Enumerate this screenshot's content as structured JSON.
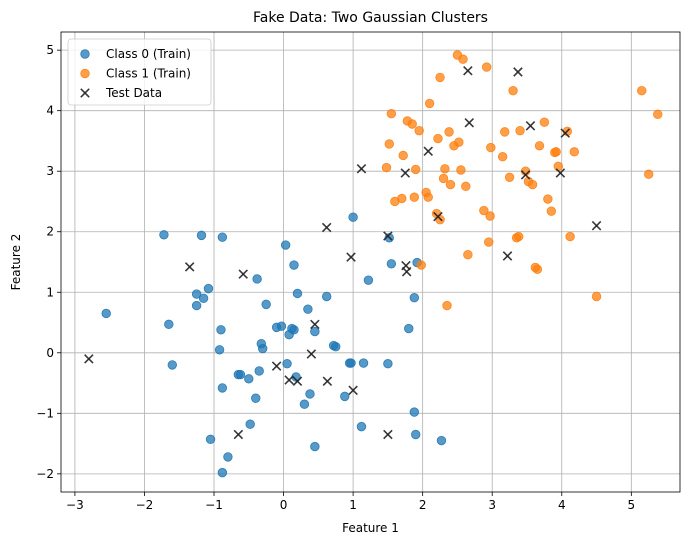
{
  "chart_data": {
    "type": "scatter",
    "title": "Fake Data: Two Gaussian Clusters",
    "xlabel": "Feature 1",
    "ylabel": "Feature 2",
    "xlim": [
      -3.2,
      5.7
    ],
    "ylim": [
      -2.3,
      5.3
    ],
    "xticks": [
      -3,
      -2,
      -1,
      0,
      1,
      2,
      3,
      4,
      5
    ],
    "yticks": [
      -2,
      -1,
      0,
      1,
      2,
      3,
      4,
      5
    ],
    "grid": true,
    "legend_position": "top-left",
    "series": [
      {
        "name": "Class 0 (Train)",
        "color": "#1f77b4",
        "marker": "circle",
        "points": [
          [
            -2.55,
            0.65
          ],
          [
            -1.72,
            1.95
          ],
          [
            -1.65,
            0.47
          ],
          [
            -1.6,
            -0.2
          ],
          [
            -1.25,
            0.97
          ],
          [
            -1.25,
            0.78
          ],
          [
            -1.18,
            1.94
          ],
          [
            -1.15,
            0.9
          ],
          [
            -1.08,
            1.06
          ],
          [
            -1.05,
            -1.43
          ],
          [
            -0.92,
            0.05
          ],
          [
            -0.9,
            0.38
          ],
          [
            -0.88,
            -0.58
          ],
          [
            -0.88,
            1.91
          ],
          [
            -0.88,
            -1.98
          ],
          [
            -0.8,
            -1.72
          ],
          [
            -0.65,
            -0.36
          ],
          [
            -0.62,
            -0.36
          ],
          [
            -0.5,
            -0.43
          ],
          [
            -0.48,
            -1.18
          ],
          [
            -0.4,
            -0.75
          ],
          [
            -0.38,
            1.22
          ],
          [
            -0.35,
            -0.3
          ],
          [
            -0.3,
            0.07
          ],
          [
            -0.32,
            0.15
          ],
          [
            -0.25,
            0.8
          ],
          [
            -0.1,
            0.42
          ],
          [
            -0.03,
            0.44
          ],
          [
            0.03,
            1.78
          ],
          [
            0.05,
            -0.18
          ],
          [
            0.08,
            0.3
          ],
          [
            0.12,
            0.4
          ],
          [
            0.15,
            0.38
          ],
          [
            0.15,
            1.45
          ],
          [
            0.18,
            -0.4
          ],
          [
            0.2,
            0.98
          ],
          [
            0.3,
            -0.85
          ],
          [
            0.35,
            0.72
          ],
          [
            0.38,
            -0.68
          ],
          [
            0.45,
            0.35
          ],
          [
            0.45,
            -1.55
          ],
          [
            0.62,
            0.93
          ],
          [
            0.72,
            0.12
          ],
          [
            0.75,
            0.1
          ],
          [
            0.88,
            -0.72
          ],
          [
            0.95,
            -0.17
          ],
          [
            0.97,
            -0.17
          ],
          [
            1.0,
            2.24
          ],
          [
            1.12,
            -1.22
          ],
          [
            1.15,
            -0.17
          ],
          [
            1.22,
            1.2
          ],
          [
            1.5,
            -0.18
          ],
          [
            1.52,
            1.9
          ],
          [
            1.55,
            1.47
          ],
          [
            1.8,
            0.4
          ],
          [
            1.88,
            0.91
          ],
          [
            1.88,
            -0.98
          ],
          [
            1.9,
            -1.35
          ],
          [
            1.92,
            1.49
          ],
          [
            2.27,
            -1.45
          ]
        ]
      },
      {
        "name": "Class 1 (Train)",
        "color": "#ff7f0e",
        "marker": "circle",
        "points": [
          [
            1.48,
            3.06
          ],
          [
            1.52,
            3.45
          ],
          [
            1.55,
            3.95
          ],
          [
            1.6,
            2.5
          ],
          [
            1.7,
            2.55
          ],
          [
            1.72,
            3.26
          ],
          [
            1.78,
            3.83
          ],
          [
            1.85,
            3.78
          ],
          [
            1.88,
            2.57
          ],
          [
            1.9,
            3.03
          ],
          [
            1.95,
            3.67
          ],
          [
            1.98,
            1.45
          ],
          [
            2.05,
            2.65
          ],
          [
            2.08,
            2.57
          ],
          [
            2.1,
            4.12
          ],
          [
            2.2,
            2.3
          ],
          [
            2.22,
            3.54
          ],
          [
            2.25,
            2.2
          ],
          [
            2.25,
            4.55
          ],
          [
            2.3,
            2.88
          ],
          [
            2.32,
            3.04
          ],
          [
            2.35,
            0.78
          ],
          [
            2.38,
            3.65
          ],
          [
            2.4,
            2.78
          ],
          [
            2.45,
            3.42
          ],
          [
            2.5,
            4.92
          ],
          [
            2.52,
            3.48
          ],
          [
            2.55,
            3.02
          ],
          [
            2.58,
            4.85
          ],
          [
            2.62,
            2.75
          ],
          [
            2.65,
            1.62
          ],
          [
            2.88,
            2.35
          ],
          [
            2.92,
            4.72
          ],
          [
            2.95,
            1.83
          ],
          [
            2.97,
            2.26
          ],
          [
            2.98,
            3.39
          ],
          [
            3.15,
            3.24
          ],
          [
            3.18,
            3.65
          ],
          [
            3.25,
            2.9
          ],
          [
            3.3,
            4.33
          ],
          [
            3.35,
            1.9
          ],
          [
            3.38,
            1.92
          ],
          [
            3.4,
            3.67
          ],
          [
            3.48,
            3.0
          ],
          [
            3.52,
            2.83
          ],
          [
            3.58,
            2.78
          ],
          [
            3.62,
            1.41
          ],
          [
            3.65,
            1.38
          ],
          [
            3.68,
            3.42
          ],
          [
            3.75,
            3.81
          ],
          [
            3.8,
            2.54
          ],
          [
            3.85,
            2.34
          ],
          [
            3.9,
            3.31
          ],
          [
            3.92,
            3.32
          ],
          [
            3.95,
            3.08
          ],
          [
            4.08,
            3.66
          ],
          [
            4.12,
            1.92
          ],
          [
            4.18,
            3.32
          ],
          [
            4.5,
            0.93
          ],
          [
            5.15,
            4.33
          ],
          [
            5.25,
            2.95
          ],
          [
            5.38,
            3.94
          ]
        ]
      },
      {
        "name": "Test Data",
        "color": "#222222",
        "marker": "x",
        "points": [
          [
            -2.8,
            -0.1
          ],
          [
            -1.35,
            1.42
          ],
          [
            -0.65,
            -1.35
          ],
          [
            -0.58,
            1.3
          ],
          [
            -0.1,
            -0.22
          ],
          [
            0.08,
            -0.45
          ],
          [
            0.2,
            -0.47
          ],
          [
            0.4,
            -0.02
          ],
          [
            0.45,
            0.47
          ],
          [
            0.62,
            2.07
          ],
          [
            0.63,
            -0.47
          ],
          [
            0.97,
            1.58
          ],
          [
            1.0,
            -0.62
          ],
          [
            1.12,
            3.04
          ],
          [
            1.5,
            1.93
          ],
          [
            1.5,
            -1.35
          ],
          [
            1.75,
            2.97
          ],
          [
            1.76,
            1.44
          ],
          [
            1.77,
            1.34
          ],
          [
            2.08,
            3.33
          ],
          [
            2.22,
            2.25
          ],
          [
            2.65,
            4.66
          ],
          [
            2.67,
            3.8
          ],
          [
            3.22,
            1.6
          ],
          [
            3.37,
            4.64
          ],
          [
            3.48,
            2.94
          ],
          [
            3.55,
            3.75
          ],
          [
            3.98,
            2.97
          ],
          [
            4.05,
            3.63
          ],
          [
            4.5,
            2.1
          ]
        ]
      }
    ]
  }
}
